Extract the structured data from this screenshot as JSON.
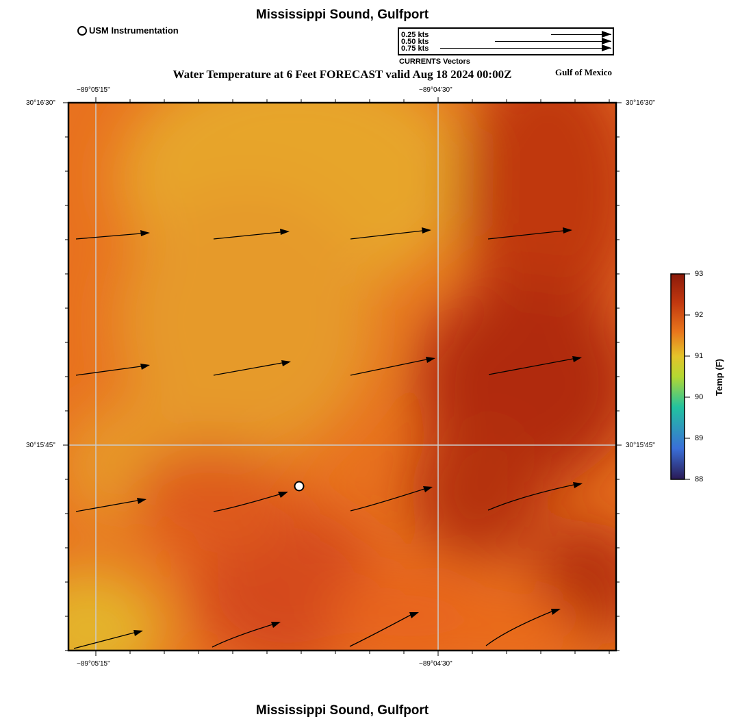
{
  "header": {
    "title": "Mississippi Sound, Gulfport",
    "station_legend": "USM Instrumentation",
    "vector_legend": {
      "rows": [
        "0.25 kts",
        "0.50 kts",
        "0.75 kts"
      ],
      "caption": "CURRENTS Vectors"
    },
    "main_title": "Water Temperature at 6 Feet FORECAST valid Aug 18 2024 00:00Z",
    "region": "Gulf of Mexico"
  },
  "map": {
    "lon_labels": [
      "−89°05'15\"",
      "−89°04'30\""
    ],
    "lat_labels": [
      "30°16'30\"",
      "30°15'45\""
    ],
    "station_name": "USM Instrumentation"
  },
  "colorbar": {
    "label": "Temp (F)",
    "ticks": [
      "93",
      "92",
      "91",
      "90",
      "89",
      "88"
    ],
    "range": [
      88,
      93
    ],
    "colors": [
      "#2a1a55",
      "#3a6fd8",
      "#22c2a0",
      "#b4d832",
      "#e4c32a",
      "#e8751c",
      "#c2380f",
      "#8a1a0a"
    ]
  },
  "footer": {
    "title": "Mississippi Sound, Gulfport"
  }
}
